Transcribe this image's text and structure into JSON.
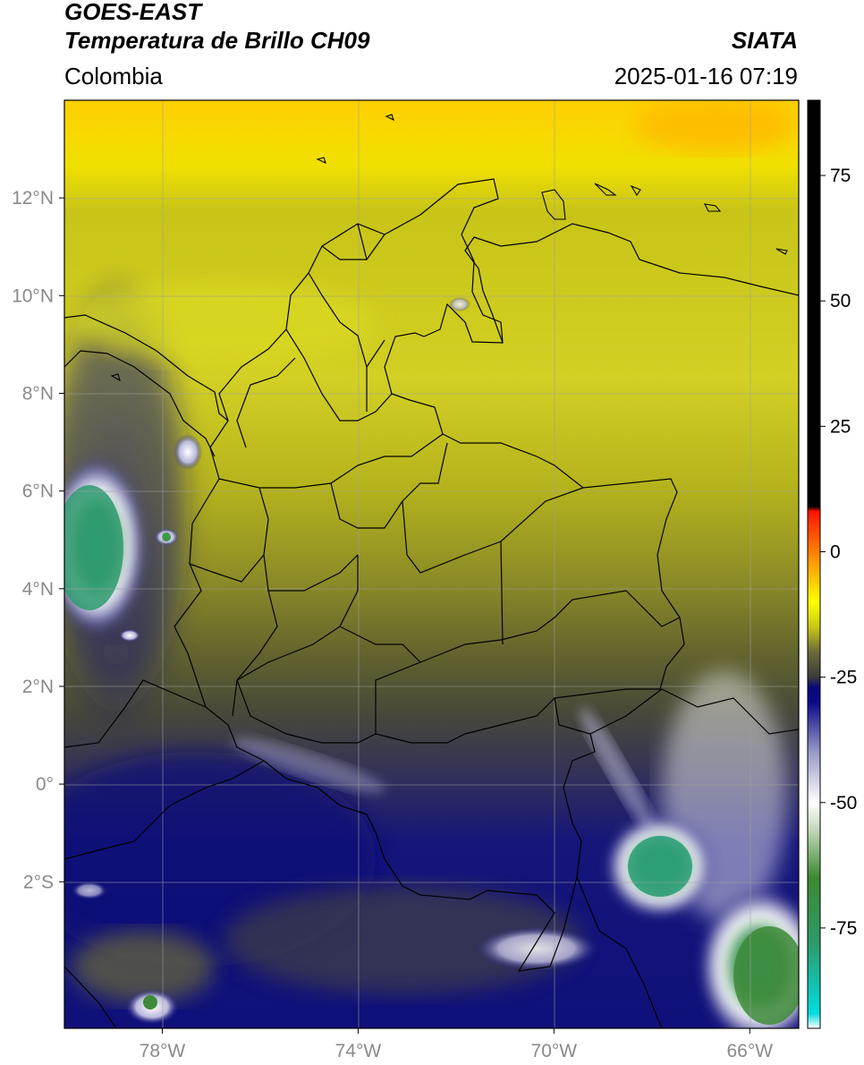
{
  "header": {
    "satellite": "GOES-EAST",
    "product": "Temperatura de Brillo CH09",
    "brand": "SIATA",
    "region": "Colombia",
    "timestamp": "2025-01-16 07:19"
  },
  "map": {
    "lon_range": [
      -80.0,
      -65.0
    ],
    "lat_range": [
      -5.0,
      14.0
    ],
    "lat_ticks": [
      12,
      10,
      8,
      6,
      4,
      2,
      0,
      -2
    ],
    "lat_tick_labels": [
      "12°N",
      "10°N",
      "8°N",
      "6°N",
      "4°N",
      "2°N",
      "0°",
      "2°S"
    ],
    "lon_ticks": [
      -78,
      -74,
      -70,
      -66
    ],
    "lon_tick_labels": [
      "78°W",
      "74°W",
      "70°W",
      "66°W"
    ],
    "grid": true
  },
  "colorbar": {
    "range": [
      -95,
      90
    ],
    "ticks": [
      75,
      50,
      25,
      0,
      -25,
      -50,
      -75
    ],
    "tick_labels": [
      "75",
      "50",
      "25",
      "0",
      "-25",
      "-50",
      "-75"
    ],
    "stops": [
      {
        "value": -95,
        "color": "#ffffff"
      },
      {
        "value": -92,
        "color": "#00dede"
      },
      {
        "value": -78,
        "color": "#2e9a6a"
      },
      {
        "value": -65,
        "color": "#3c8a30"
      },
      {
        "value": -55,
        "color": "#c8dcc0"
      },
      {
        "value": -50,
        "color": "#ffffff"
      },
      {
        "value": -40,
        "color": "#9a9ac8"
      },
      {
        "value": -30,
        "color": "#0a0a88"
      },
      {
        "value": -27,
        "color": "#08087a"
      },
      {
        "value": -25,
        "color": "#3c3c3c"
      },
      {
        "value": -20,
        "color": "#6a6a3a"
      },
      {
        "value": -15,
        "color": "#c8c814"
      },
      {
        "value": -10,
        "color": "#ffff00"
      },
      {
        "value": -2,
        "color": "#ff9a00"
      },
      {
        "value": 8,
        "color": "#ff1400"
      },
      {
        "value": 9,
        "color": "#000000"
      },
      {
        "value": 90,
        "color": "#000000"
      }
    ]
  }
}
